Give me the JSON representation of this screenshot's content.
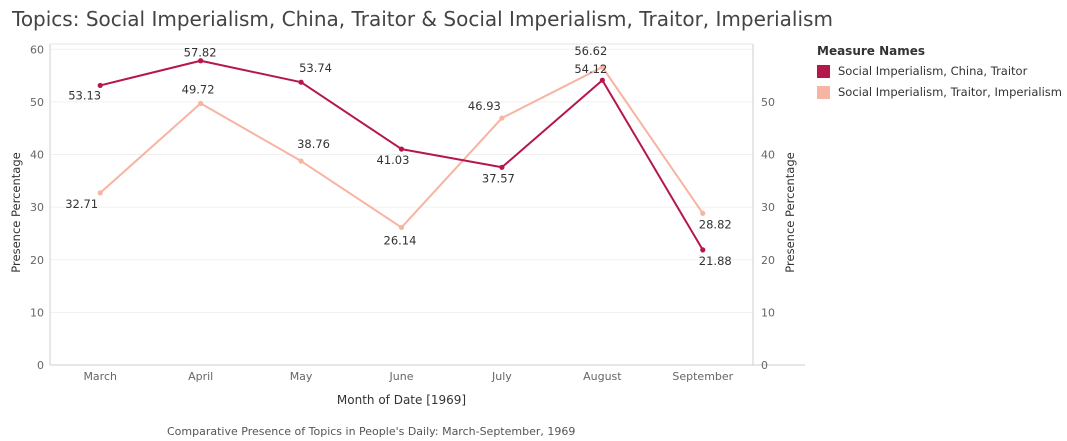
{
  "title": "Topics: Social Imperialism, China, Traitor & Social Imperialism, Traitor, Imperialism",
  "legend": {
    "title": "Measure Names",
    "items": [
      {
        "label": "Social Imperialism, China, Traitor",
        "color": "#b5174b"
      },
      {
        "label": "Social Imperialism, Traitor, Imperialism",
        "color": "#f7b4a2"
      }
    ]
  },
  "caption": "Comparative Presence of Topics in People's Daily: March-September, 1969",
  "chart_data": {
    "type": "line",
    "title": "Topics: Social Imperialism, China, Traitor & Social Imperialism, Traitor, Imperialism",
    "xlabel": "Month of Date [1969]",
    "ylabel": "Presence Percentage",
    "y2label": "Presence Percentage",
    "categories": [
      "March",
      "April",
      "May",
      "June",
      "July",
      "August",
      "September"
    ],
    "ylim": [
      0,
      61
    ],
    "yticks": [
      0,
      10,
      20,
      30,
      40,
      50,
      60
    ],
    "y2ticks": [
      0,
      10,
      20,
      30,
      40,
      50
    ],
    "grid": true,
    "legend_position": "right",
    "series": [
      {
        "name": "Social Imperialism, China, Traitor",
        "color": "#b5174b",
        "values": [
          53.13,
          57.82,
          53.74,
          41.03,
          37.57,
          54.12,
          21.88
        ],
        "labels": [
          "53.13",
          "57.82",
          "53.74",
          "41.03",
          "37.57",
          "54.12",
          "21.88"
        ]
      },
      {
        "name": "Social Imperialism, Traitor, Imperialism",
        "color": "#f7b4a2",
        "values": [
          32.71,
          49.72,
          38.76,
          26.14,
          46.93,
          56.62,
          28.82
        ],
        "labels": [
          "32.71",
          "49.72",
          "38.76",
          "26.14",
          "46.93",
          "56.62",
          "28.82"
        ]
      }
    ]
  }
}
